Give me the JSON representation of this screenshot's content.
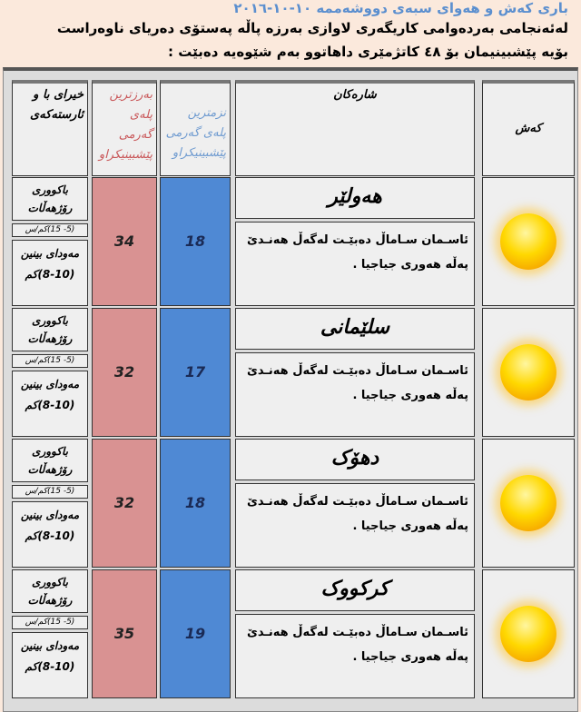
{
  "header": {
    "title": "باری کەش و هەوای سبەی دووشەممە ١٠-١٠-٢٠١٦",
    "line1": "لەئەنجامی بەردەوامی کاریگەری لاوازی بەرزە پاڵە پەستۆی  دەریای ناوەراست",
    "line2": "بۆیە پێشبینیمان بۆ ٤٨ کاتژمێری داهاتوو بەم شێوەیە دەبێت :"
  },
  "columns": {
    "wind": "خیرای با و ئارستەکەی",
    "max": "بەرزترین پلەی گەرمی پێشبینیکراو",
    "min": "نزمترین پلەی گەرمی پێشبینیکراو",
    "city": "شارەکان",
    "weather": "کەش"
  },
  "colors": {
    "max_bg": "#d99292",
    "min_bg": "#4f89d4",
    "title": "#5b8fcf"
  },
  "rows": [
    {
      "city": "هەولێر",
      "description": "ئاسـمان سـاماڵ دەبێـت لەگەڵ هەنـدێ پەڵە هەوری جیاجیا .",
      "max": "34",
      "min": "18",
      "wind_dir": "باکووری رۆژهەڵات",
      "wind_speed": "(5- 15)کم/س",
      "visibility": "مەودای بینین (10-8)کم",
      "icon": "sun-icon"
    },
    {
      "city": "سلێمانی",
      "description": "ئاسـمان سـاماڵ دەبێـت لەگەڵ هەنـدێ پەڵە هەوری جیاجیا .",
      "max": "32",
      "min": "17",
      "wind_dir": "باکووری رۆژهەڵات",
      "wind_speed": "(5- 15)کم/س",
      "visibility": "مەودای بینین (10-8)کم",
      "icon": "sun-icon"
    },
    {
      "city": "دهۆک",
      "description": "ئاسـمان سـاماڵ دەبێـت لەگەڵ هەنـدێ پەڵە هەوری جیاجیا .",
      "max": "32",
      "min": "18",
      "wind_dir": "باکووری رۆژهەڵات",
      "wind_speed": "(5- 15)کم/س",
      "visibility": "مەودای بینین (10-8)کم",
      "icon": "sun-icon"
    },
    {
      "city": "کرکووک",
      "description": "ئاسـمان سـاماڵ دەبێـت لەگەڵ هەنـدێ پەڵە هەوری جیاجیا .",
      "max": "35",
      "min": "19",
      "wind_dir": "باکووری رۆژهەڵات",
      "wind_speed": "(5- 15)کم/س",
      "visibility": "مەودای بینین (10-8)کم",
      "icon": "sun-icon"
    }
  ]
}
